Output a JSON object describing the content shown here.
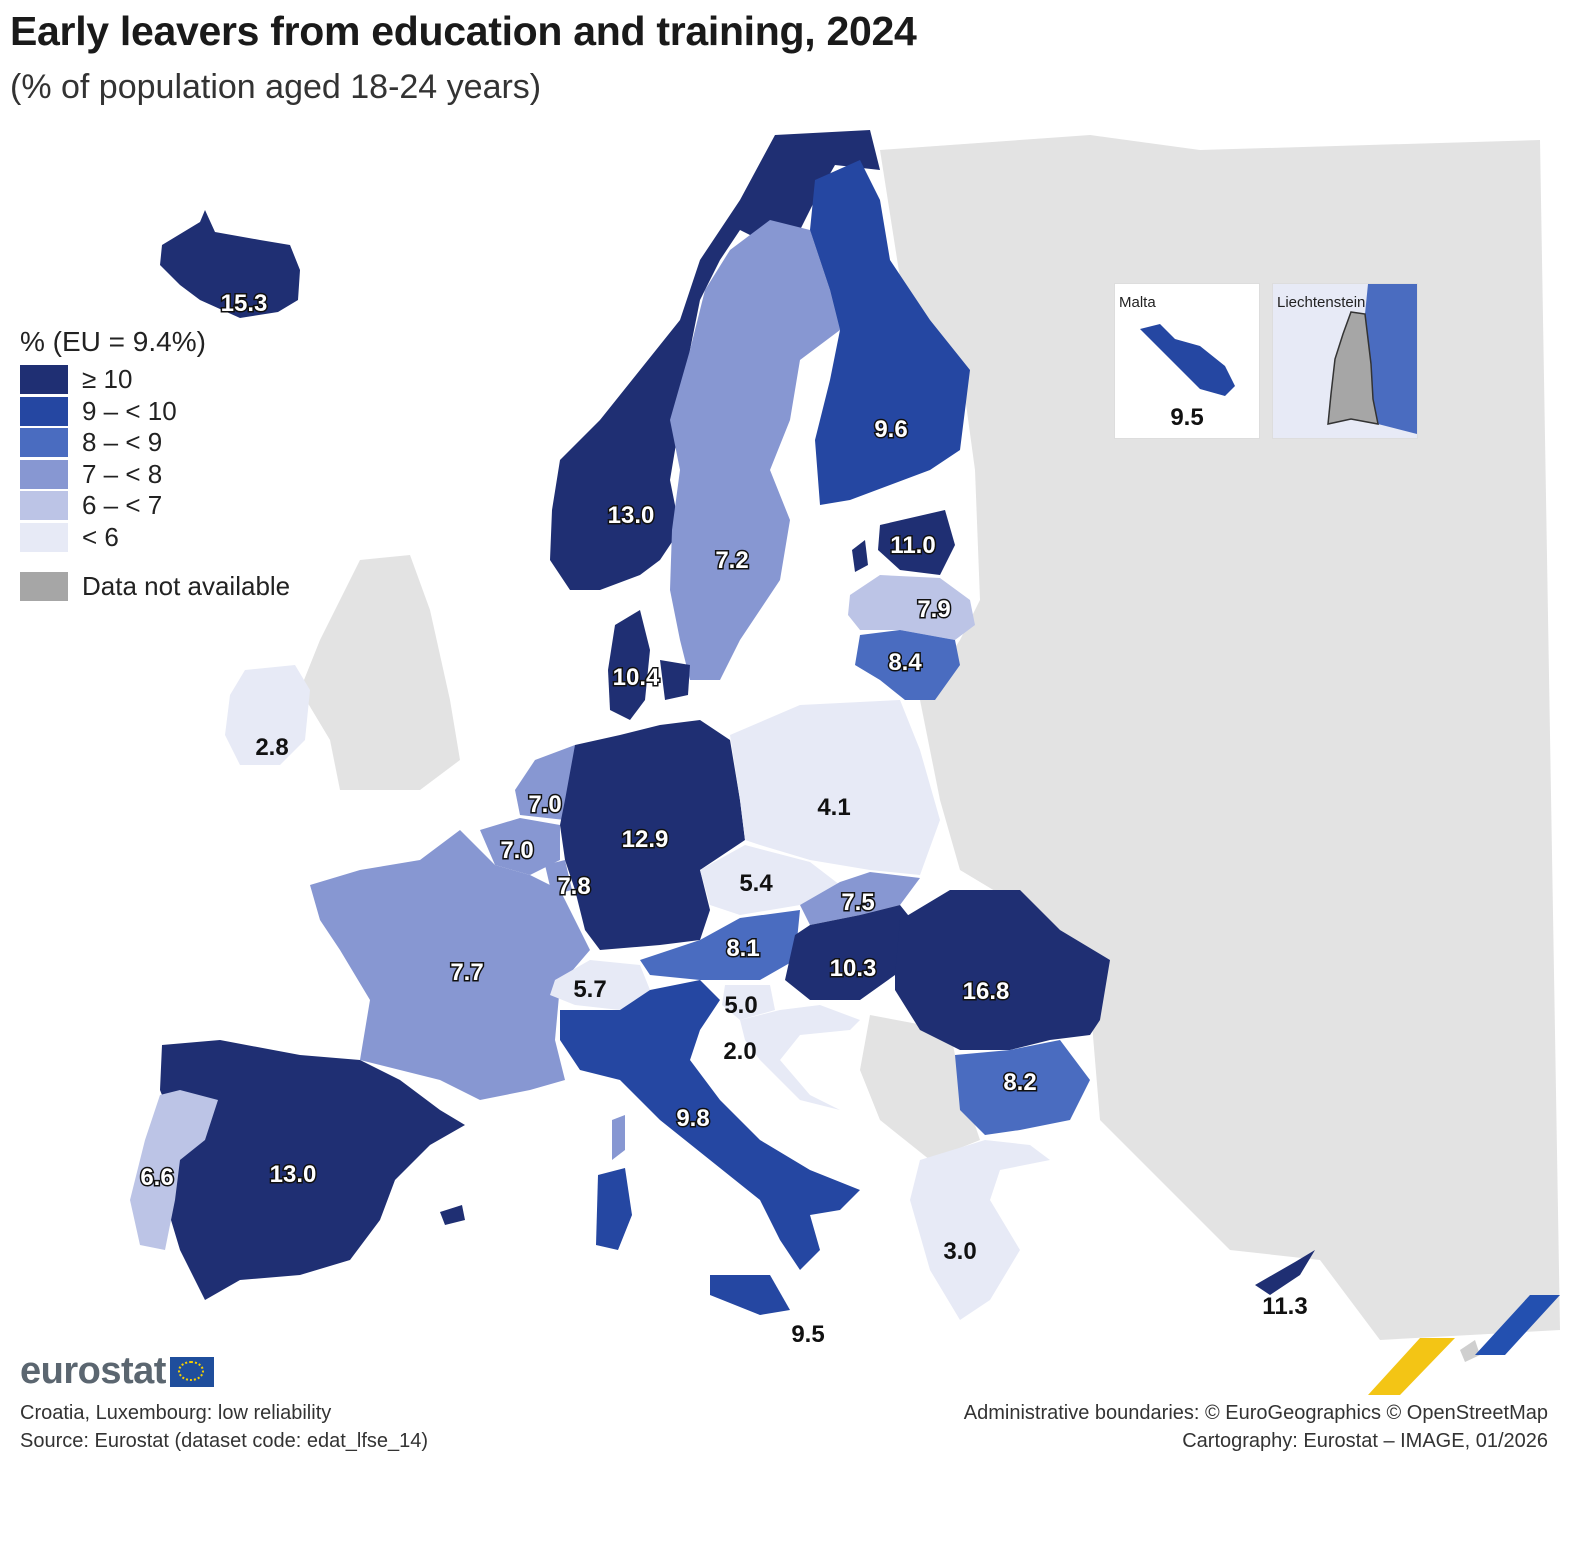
{
  "title": "Early leavers from education and training, 2024",
  "subtitle": "(% of population aged 18-24 years)",
  "legend": {
    "title": "% (EU = 9.4%)",
    "items": [
      {
        "label": "≥ 10",
        "color": "#1f2f73"
      },
      {
        "label": "9 – < 10",
        "color": "#2547a2"
      },
      {
        "label": "8 – < 9",
        "color": "#4a6cc0"
      },
      {
        "label": "7 – < 8",
        "color": "#8797d2"
      },
      {
        "label": "6 – < 7",
        "color": "#bcc4e6"
      },
      {
        "label": "< 6",
        "color": "#e7eaf6"
      }
    ],
    "not_available": {
      "label": "Data not available",
      "color": "#a6a6a6"
    }
  },
  "insets": {
    "malta": {
      "title": "Malta",
      "value": "9.5"
    },
    "liechtenstein": {
      "title": "Liechtenstein"
    }
  },
  "regions": [
    {
      "name": "Iceland",
      "value": "15.3"
    },
    {
      "name": "Norway",
      "value": "13.0"
    },
    {
      "name": "Sweden",
      "value": "7.2"
    },
    {
      "name": "Finland",
      "value": "9.6"
    },
    {
      "name": "Estonia",
      "value": "11.0"
    },
    {
      "name": "Latvia",
      "value": "7.9"
    },
    {
      "name": "Lithuania",
      "value": "8.4"
    },
    {
      "name": "Denmark",
      "value": "10.4"
    },
    {
      "name": "Ireland",
      "value": "2.8"
    },
    {
      "name": "Netherlands",
      "value": "7.0"
    },
    {
      "name": "Belgium",
      "value": "7.0"
    },
    {
      "name": "Luxembourg",
      "value": "7.8"
    },
    {
      "name": "Germany",
      "value": "12.9"
    },
    {
      "name": "Poland",
      "value": "4.1"
    },
    {
      "name": "Czechia",
      "value": "5.4"
    },
    {
      "name": "Slovakia",
      "value": "7.5"
    },
    {
      "name": "Austria",
      "value": "8.1"
    },
    {
      "name": "Hungary",
      "value": "10.3"
    },
    {
      "name": "Romania",
      "value": "16.8"
    },
    {
      "name": "France",
      "value": "7.7"
    },
    {
      "name": "Switzerland",
      "value": "5.7"
    },
    {
      "name": "Slovenia",
      "value": "5.0"
    },
    {
      "name": "Croatia",
      "value": "2.0"
    },
    {
      "name": "Bulgaria",
      "value": "8.2"
    },
    {
      "name": "Italy",
      "value": "9.8"
    },
    {
      "name": "Spain",
      "value": "13.0"
    },
    {
      "name": "Portugal",
      "value": "6.6"
    },
    {
      "name": "Greece",
      "value": "3.0"
    },
    {
      "name": "Cyprus",
      "value": "11.3"
    },
    {
      "name": "Malta",
      "value": "9.5"
    }
  ],
  "footer": {
    "brand": "eurostat",
    "note": "Croatia, Luxembourg: low reliability",
    "source": "Source: Eurostat (dataset code: edat_lfse_14)",
    "boundaries": "Administrative boundaries: © EuroGeographics © OpenStreetMap",
    "cartography": "Cartography: Eurostat – IMAGE, 01/2026"
  }
}
